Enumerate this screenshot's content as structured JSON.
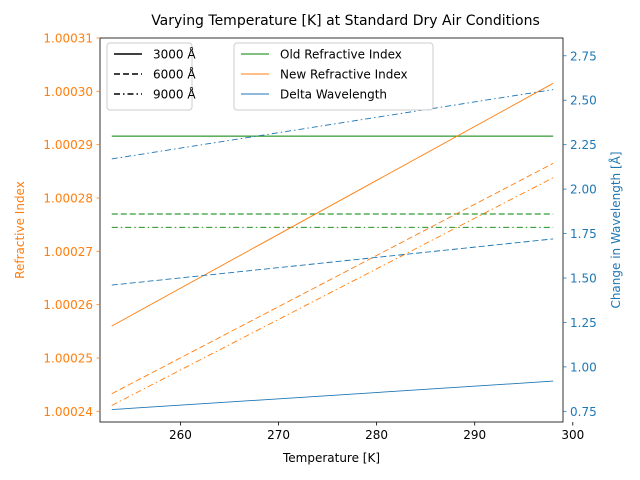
{
  "chart_data": {
    "type": "line",
    "title": "Varying Temperature [K] at Standard Dry Air Conditions",
    "xlabel": "Temperature [K]",
    "ylabel_left": "Refractive Index",
    "ylabel_right": "Change in Wavelength [Å]",
    "xlim": [
      251.8,
      299.0
    ],
    "ylim_left": [
      1.000238,
      1.00031
    ],
    "ylim_right": [
      0.69,
      2.85
    ],
    "x_ticks": [
      260,
      270,
      280,
      290,
      300
    ],
    "x_tick_labels": [
      "260",
      "270",
      "280",
      "290",
      "300"
    ],
    "y_left_ticks": [
      1.00024,
      1.00025,
      1.00026,
      1.00027,
      1.00028,
      1.00029,
      1.0003,
      1.00031
    ],
    "y_left_tick_labels": [
      "1.00024",
      "1.00025",
      "1.00026",
      "1.00027",
      "1.00028",
      "1.00029",
      "1.00030",
      "1.00031"
    ],
    "y_right_ticks": [
      0.75,
      1.0,
      1.25,
      1.5,
      1.75,
      2.0,
      2.25,
      2.5,
      2.75
    ],
    "y_right_tick_labels": [
      "0.75",
      "1.00",
      "1.25",
      "1.50",
      "1.75",
      "2.00",
      "2.25",
      "2.50",
      "2.75"
    ],
    "grid": false,
    "x": [
      253,
      298
    ],
    "series": [
      {
        "name": "Old Refractive Index",
        "wavelength": "3000 Å",
        "axis": "left",
        "color": "#008000",
        "dash": "solid",
        "values": [
          1.0002916,
          1.0002916
        ]
      },
      {
        "name": "Old Refractive Index",
        "wavelength": "6000 Å",
        "axis": "left",
        "color": "#008000",
        "dash": "dashed",
        "values": [
          1.000277,
          1.000277
        ]
      },
      {
        "name": "Old Refractive Index",
        "wavelength": "9000 Å",
        "axis": "left",
        "color": "#008000",
        "dash": "dashdot",
        "values": [
          1.0002745,
          1.0002745
        ]
      },
      {
        "name": "New Refractive Index",
        "wavelength": "3000 Å",
        "axis": "left",
        "color": "#ff7f0e",
        "dash": "solid",
        "values": [
          1.000256,
          1.0003015
        ]
      },
      {
        "name": "New Refractive Index",
        "wavelength": "6000 Å",
        "axis": "left",
        "color": "#ff7f0e",
        "dash": "dashed",
        "values": [
          1.0002433,
          1.0002865
        ]
      },
      {
        "name": "New Refractive Index",
        "wavelength": "9000 Å",
        "axis": "left",
        "color": "#ff7f0e",
        "dash": "dashdot",
        "values": [
          1.0002411,
          1.0002838
        ]
      },
      {
        "name": "Delta Wavelength",
        "wavelength": "3000 Å",
        "axis": "right",
        "color": "#1f77b4",
        "dash": "solid",
        "values": [
          0.76,
          0.92
        ]
      },
      {
        "name": "Delta Wavelength",
        "wavelength": "6000 Å",
        "axis": "right",
        "color": "#1f77b4",
        "dash": "dashed",
        "values": [
          1.46,
          1.72
        ]
      },
      {
        "name": "Delta Wavelength",
        "wavelength": "9000 Å",
        "axis": "right",
        "color": "#1f77b4",
        "dash": "dashdot",
        "values": [
          2.17,
          2.56
        ]
      }
    ],
    "legend_styles": [
      {
        "label": "3000 Å",
        "dash": "solid"
      },
      {
        "label": "6000 Å",
        "dash": "dashed"
      },
      {
        "label": "9000 Å",
        "dash": "dashdot"
      }
    ],
    "legend_colors": [
      {
        "label": "Old Refractive Index",
        "color": "#008000"
      },
      {
        "label": "New Refractive Index",
        "color": "#ff7f0e"
      },
      {
        "label": "Delta Wavelength",
        "color": "#1f77b4"
      }
    ],
    "legend_placement": "top-left",
    "left_axis_color": "#ff7f0e",
    "right_axis_color": "#1f77b4"
  }
}
